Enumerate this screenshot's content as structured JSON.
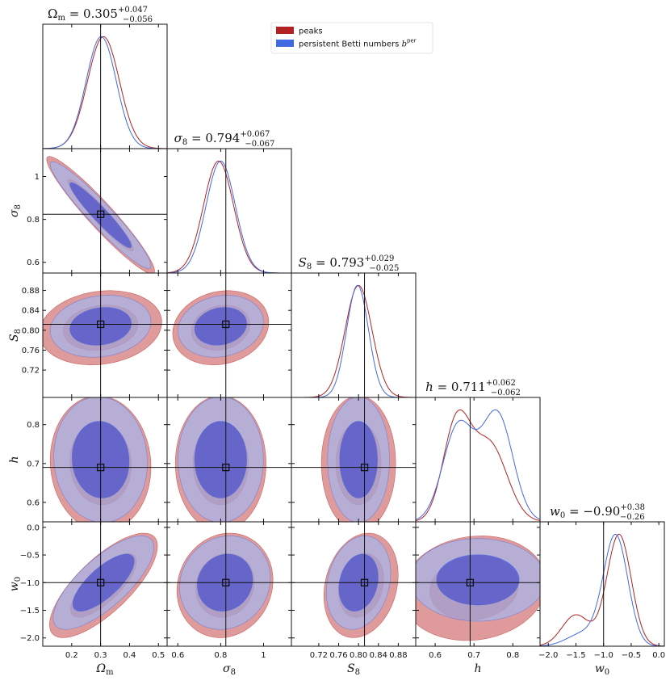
{
  "chart_data": {
    "type": "corner",
    "parameters": [
      {
        "key": "Om",
        "label": "Ωm",
        "label_html": [
          "Ω",
          "m"
        ],
        "range": [
          0.1,
          0.53
        ],
        "ticks": [
          0.2,
          0.3,
          0.4,
          0.5
        ],
        "truth": 0.3,
        "title_parts": {
          "sym": "Ω",
          "sub": "m",
          "val": "= 0.305",
          "sup": "+0.047",
          "inf": "−0.056"
        }
      },
      {
        "key": "s8",
        "label": "σ8",
        "label_html": [
          "σ",
          "8"
        ],
        "range": [
          0.55,
          1.13
        ],
        "ticks": [
          0.6,
          0.8,
          1.0
        ],
        "truth": 0.824,
        "title_parts": {
          "sym": "σ",
          "sub": "8",
          "val": "= 0.794",
          "sup": "+0.067",
          "inf": "−0.067"
        }
      },
      {
        "key": "S8",
        "label": "S8",
        "label_html": [
          "S",
          "8"
        ],
        "range": [
          0.665,
          0.915
        ],
        "ticks": [
          0.72,
          0.76,
          0.8,
          0.84,
          0.88
        ],
        "ticks_display": [
          "0.72",
          "0.76",
          "0.80",
          "0.84",
          "0.88"
        ],
        "truth": 0.812,
        "title_parts": {
          "sym": "S",
          "sub": "8",
          "val": "= 0.793",
          "sup": "+0.029",
          "inf": "−0.025"
        }
      },
      {
        "key": "h",
        "label": "h",
        "label_html": [
          "h",
          ""
        ],
        "range": [
          0.55,
          0.87
        ],
        "ticks": [
          0.6,
          0.7,
          0.8
        ],
        "truth": 0.69,
        "title_parts": {
          "sym": "h",
          "sub": "",
          "val": "= 0.711",
          "sup": "+0.062",
          "inf": "−0.062"
        }
      },
      {
        "key": "w0",
        "label": "w0",
        "label_html": [
          "w",
          "0"
        ],
        "range": [
          -2.15,
          0.1
        ],
        "ticks": [
          -2.0,
          -1.5,
          -1.0,
          -0.5,
          0.0
        ],
        "ticks_display": [
          "−2.0",
          "−1.5",
          "−1.0",
          "−0.5",
          "0.0"
        ],
        "truth": -1.0,
        "title_parts": {
          "sym": "w",
          "sub": "0",
          "val": "= −0.90",
          "sup": "+0.38",
          "inf": "−0.26"
        }
      }
    ],
    "series": [
      {
        "name": "peaks",
        "color": "#b22222",
        "fill_outer": "#d98a8a",
        "fill_inner": "#c0504f"
      },
      {
        "name": "persistent Betti numbers b^per",
        "name_parts": [
          "persistent Betti numbers ",
          "b",
          "per"
        ],
        "color": "#4169e1",
        "fill_outer": "#aab4e8",
        "fill_inner": "#4c52cc"
      }
    ],
    "legend": {
      "position": "top-right",
      "entries": [
        {
          "label": "peaks"
        },
        {
          "label": "persistent Betti numbers ",
          "italic": "b",
          "sup": "per"
        }
      ]
    },
    "marginals": {
      "Om": {
        "peaks": {
          "mean": 0.31,
          "sd": 0.055
        },
        "persistent Betti numbers b^per": {
          "mean": 0.302,
          "sd": 0.052
        }
      },
      "s8": {
        "peaks": {
          "mean": 0.79,
          "sd": 0.07
        },
        "persistent Betti numbers b^per": {
          "mean": 0.8,
          "sd": 0.068
        }
      },
      "S8": {
        "peaks": {
          "mean": 0.8,
          "sd": 0.027
        },
        "persistent Betti numbers b^per": {
          "mean": 0.798,
          "sd": 0.022
        }
      },
      "h": {
        "peaks": {
          "mixture": [
            [
              0.655,
              0.035,
              1.0
            ],
            [
              0.74,
              0.045,
              0.8
            ]
          ]
        },
        "persistent Betti numbers b^per": {
          "mixture": [
            [
              0.66,
              0.04,
              0.85
            ],
            [
              0.76,
              0.04,
              0.95
            ]
          ]
        }
      },
      "w0": {
        "peaks": {
          "mixture": [
            [
              -0.72,
              0.22,
              1.0
            ],
            [
              -1.5,
              0.25,
              0.28
            ]
          ]
        },
        "persistent Betti numbers b^per": {
          "mixture": [
            [
              -0.78,
              0.22,
              1.0
            ],
            [
              -1.35,
              0.3,
              0.12
            ]
          ]
        }
      }
    },
    "contours_2d": {
      "s8|Om": {
        "peaks": {
          "center": [
            0.3,
            0.82
          ],
          "sd": [
            0.075,
            0.11
          ],
          "rho": -0.95
        },
        "persistent Betti numbers b^per": {
          "center": [
            0.3,
            0.82
          ],
          "sd": [
            0.07,
            0.1
          ],
          "rho": -0.95
        }
      },
      "S8|Om": {
        "peaks": {
          "center": [
            0.3,
            0.805
          ],
          "sd": [
            0.085,
            0.03
          ],
          "rho": 0.15
        },
        "persistent Betti numbers b^per": {
          "center": [
            0.3,
            0.808
          ],
          "sd": [
            0.07,
            0.025
          ],
          "rho": 0.15
        }
      },
      "h|Om": {
        "peaks": {
          "center": [
            0.3,
            0.7
          ],
          "sd": [
            0.07,
            0.07
          ],
          "rho": -0.05
        },
        "persistent Betti numbers b^per": {
          "center": [
            0.3,
            0.71
          ],
          "sd": [
            0.065,
            0.065
          ],
          "rho": -0.05
        }
      },
      "w0|Om": {
        "peaks": {
          "center": [
            0.31,
            -1.05
          ],
          "sd": [
            0.075,
            0.38
          ],
          "rho": 0.75
        },
        "persistent Betti numbers b^per": {
          "center": [
            0.31,
            -1.0
          ],
          "sd": [
            0.07,
            0.34
          ],
          "rho": 0.75
        }
      },
      "S8|s8": {
        "peaks": {
          "center": [
            0.8,
            0.805
          ],
          "sd": [
            0.09,
            0.03
          ],
          "rho": 0.15
        },
        "persistent Betti numbers b^per": {
          "center": [
            0.8,
            0.808
          ],
          "sd": [
            0.08,
            0.025
          ],
          "rho": 0.15
        }
      },
      "h|s8": {
        "peaks": {
          "center": [
            0.8,
            0.7
          ],
          "sd": [
            0.085,
            0.07
          ],
          "rho": 0.0
        },
        "persistent Betti numbers b^per": {
          "center": [
            0.8,
            0.71
          ],
          "sd": [
            0.08,
            0.065
          ],
          "rho": 0.0
        }
      },
      "w0|s8": {
        "peaks": {
          "center": [
            0.82,
            -1.05
          ],
          "sd": [
            0.09,
            0.38
          ],
          "rho": 0.1
        },
        "persistent Betti numbers b^per": {
          "center": [
            0.82,
            -1.0
          ],
          "sd": [
            0.085,
            0.34
          ],
          "rho": 0.1
        }
      },
      "h|S8": {
        "peaks": {
          "center": [
            0.8,
            0.7
          ],
          "sd": [
            0.03,
            0.07
          ],
          "rho": 0.0
        },
        "persistent Betti numbers b^per": {
          "center": [
            0.8,
            0.71
          ],
          "sd": [
            0.025,
            0.065
          ],
          "rho": 0.0
        }
      },
      "w0|S8": {
        "peaks": {
          "center": [
            0.805,
            -1.05
          ],
          "sd": [
            0.03,
            0.38
          ],
          "rho": 0.2
        },
        "persistent Betti numbers b^per": {
          "center": [
            0.8,
            -1.0
          ],
          "sd": [
            0.026,
            0.34
          ],
          "rho": 0.2
        }
      },
      "w0|h": {
        "peaks": {
          "center": [
            0.7,
            -1.1
          ],
          "sd": [
            0.075,
            0.38
          ],
          "rho": 0.1
        },
        "persistent Betti numbers b^per": {
          "center": [
            0.71,
            -0.95
          ],
          "sd": [
            0.07,
            0.3
          ],
          "rho": 0.0
        }
      }
    },
    "grid": false
  }
}
